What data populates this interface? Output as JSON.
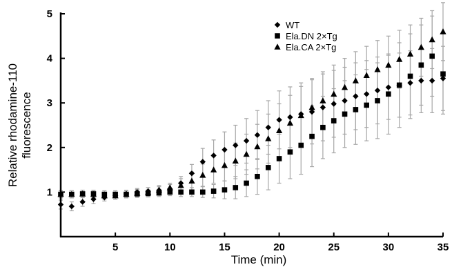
{
  "chart_data": {
    "type": "scatter",
    "title": "",
    "xlabel": "Time (min)",
    "ylabel_lines": [
      "Relative rhodamine-110",
      "fluorescence"
    ],
    "xlim": [
      0,
      35
    ],
    "ylim": [
      0,
      5
    ],
    "x_ticks": [
      5,
      10,
      15,
      20,
      25,
      30,
      35
    ],
    "y_ticks": [
      1,
      2,
      3,
      4,
      5
    ],
    "grid": false,
    "legend_position": "top-right",
    "error_bar_color": "#a6a6a6",
    "marker_color": "#000000",
    "series": [
      {
        "name": "WT",
        "marker": "diamond",
        "x": [
          0,
          1,
          2,
          3,
          4,
          5,
          6,
          7,
          8,
          9,
          10,
          11,
          12,
          13,
          14,
          15,
          16,
          17,
          18,
          19,
          20,
          21,
          22,
          23,
          24,
          25,
          26,
          27,
          28,
          29,
          30,
          31,
          32,
          33,
          34,
          35
        ],
        "y": [
          0.72,
          0.68,
          0.78,
          0.84,
          0.88,
          0.92,
          0.96,
          1.0,
          1.02,
          1.04,
          1.07,
          1.2,
          1.42,
          1.68,
          1.82,
          1.95,
          2.05,
          2.15,
          2.28,
          2.45,
          2.62,
          2.68,
          2.75,
          2.8,
          2.9,
          2.98,
          3.05,
          3.15,
          3.2,
          3.28,
          3.35,
          3.4,
          3.45,
          3.5,
          3.5,
          3.55
        ],
        "err": [
          0.1,
          0.1,
          0.1,
          0.1,
          0.08,
          0.08,
          0.08,
          0.08,
          0.08,
          0.08,
          0.1,
          0.15,
          0.2,
          0.3,
          0.35,
          0.4,
          0.45,
          0.5,
          0.55,
          0.6,
          0.65,
          0.68,
          0.7,
          0.72,
          0.75,
          0.75,
          0.75,
          0.75,
          0.75,
          0.75,
          0.72,
          0.72,
          0.72,
          0.72,
          0.72,
          0.72
        ]
      },
      {
        "name": "Ela.DN 2×Tg",
        "marker": "square",
        "x": [
          0,
          1,
          2,
          3,
          4,
          5,
          6,
          7,
          8,
          9,
          10,
          11,
          12,
          13,
          14,
          15,
          16,
          17,
          18,
          19,
          20,
          21,
          22,
          23,
          24,
          25,
          26,
          27,
          28,
          29,
          30,
          31,
          32,
          33,
          34,
          35
        ],
        "y": [
          0.95,
          0.95,
          0.96,
          0.96,
          0.95,
          0.95,
          0.95,
          0.96,
          0.97,
          0.98,
          1.0,
          1.0,
          1.0,
          1.0,
          1.02,
          1.05,
          1.1,
          1.2,
          1.35,
          1.55,
          1.75,
          1.9,
          2.05,
          2.25,
          2.45,
          2.6,
          2.75,
          2.85,
          2.95,
          3.05,
          3.2,
          3.4,
          3.6,
          3.85,
          4.05,
          3.65
        ],
        "err": [
          0.08,
          0.08,
          0.08,
          0.08,
          0.08,
          0.08,
          0.08,
          0.08,
          0.08,
          0.08,
          0.08,
          0.1,
          0.1,
          0.12,
          0.15,
          0.2,
          0.25,
          0.3,
          0.4,
          0.5,
          0.55,
          0.6,
          0.65,
          0.68,
          0.7,
          0.72,
          0.75,
          0.78,
          0.8,
          0.85,
          0.9,
          0.95,
          0.95,
          0.9,
          0.9,
          0.9
        ]
      },
      {
        "name": "Ela.CA 2×Tg",
        "marker": "triangle",
        "x": [
          0,
          1,
          2,
          3,
          4,
          5,
          6,
          7,
          8,
          9,
          10,
          11,
          12,
          13,
          14,
          15,
          16,
          17,
          18,
          19,
          20,
          21,
          22,
          23,
          24,
          25,
          26,
          27,
          28,
          29,
          30,
          31,
          32,
          33,
          34,
          35
        ],
        "y": [
          0.95,
          0.95,
          0.96,
          0.95,
          0.92,
          0.92,
          0.95,
          0.98,
          1.0,
          1.05,
          1.1,
          1.15,
          1.25,
          1.38,
          1.5,
          1.6,
          1.7,
          1.85,
          2.02,
          2.2,
          2.38,
          2.55,
          2.72,
          2.9,
          3.05,
          3.2,
          3.35,
          3.5,
          3.62,
          3.75,
          3.85,
          3.98,
          4.1,
          4.25,
          4.42,
          4.6
        ],
        "err": [
          0.08,
          0.08,
          0.08,
          0.08,
          0.08,
          0.08,
          0.08,
          0.08,
          0.1,
          0.1,
          0.1,
          0.15,
          0.2,
          0.25,
          0.3,
          0.35,
          0.4,
          0.45,
          0.5,
          0.55,
          0.6,
          0.62,
          0.65,
          0.65,
          0.65,
          0.65,
          0.65,
          0.65,
          0.65,
          0.65,
          0.65,
          0.65,
          0.65,
          0.65,
          0.65,
          0.65
        ]
      }
    ]
  }
}
